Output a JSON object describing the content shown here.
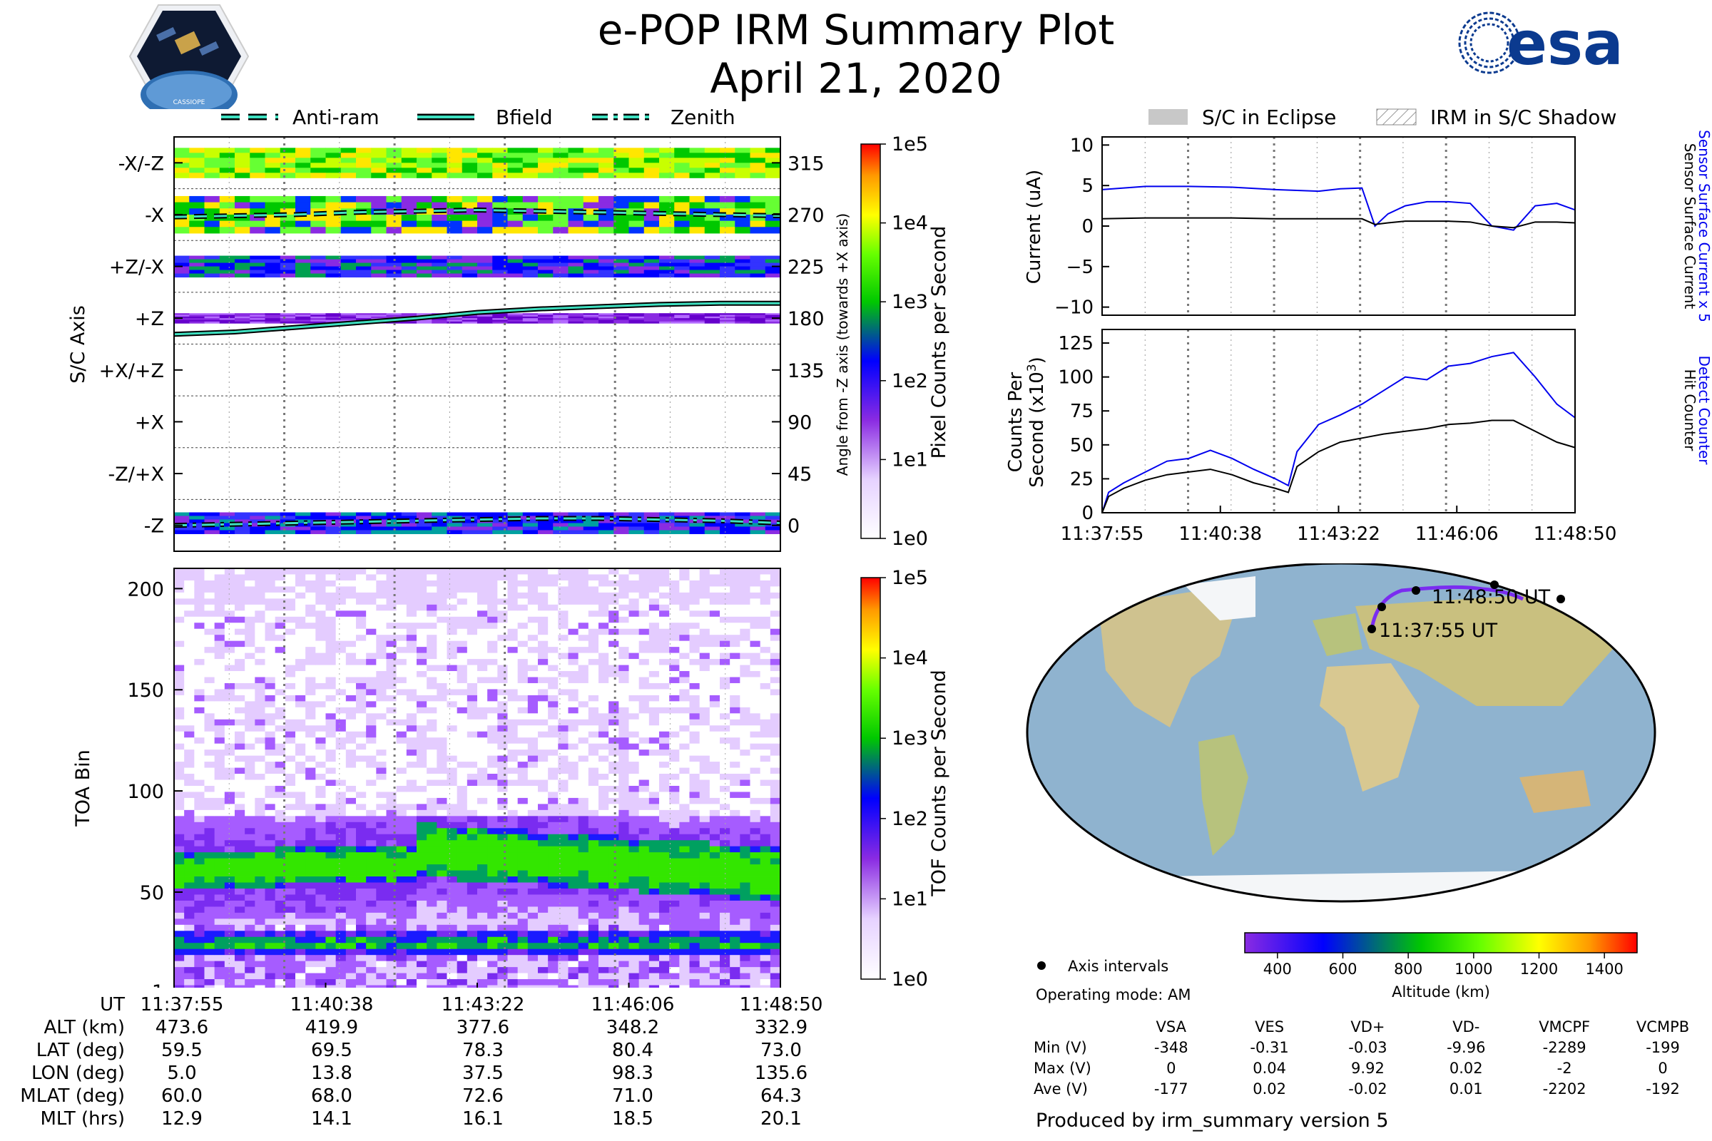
{
  "title": "e-POP IRM Summary Plot",
  "date": "April 21, 2020",
  "logos": {
    "left": "CASSIOPE",
    "right": "esa"
  },
  "colors": {
    "current_sensor": "#0000ee",
    "counts_detect": "#0000ee",
    "track": "#7a2cf0",
    "ocean": "#8fb3cf",
    "land": "#d2c896",
    "ice": "#f4f6f8"
  },
  "left_legend": [
    "Anti-ram",
    "Bfield",
    "Zenith"
  ],
  "right_legend": [
    "S/C in Eclipse",
    "IRM in S/C Shadow"
  ],
  "axis_labels": {
    "sc_axis": "S/C Axis",
    "angle": "Angle from -Z axis (towards +X axis)",
    "pixel_cbar": "Pixel Counts per Second",
    "toa": "TOA Bin",
    "tof_cbar": "TOF Counts per Second",
    "current": "Current (uA)",
    "counts1": "Counts Per",
    "counts2": "Second (x10",
    "counts_exp": "3",
    "sensor_current_x5": "Sensor Surface Current x 5",
    "sensor_current": "Sensor Surface Current",
    "detect_counter": "Detect Counter",
    "hit_counter": "Hit Counter",
    "altitude": "Altitude (km)"
  },
  "sc_axis_ticks": [
    "-X/-Z",
    "-X",
    "+Z/-X",
    "+Z",
    "+X/+Z",
    "+X",
    "-Z/+X",
    "-Z"
  ],
  "angle_ticks": [
    "315",
    "270",
    "225",
    "180",
    "135",
    "90",
    "45",
    "0"
  ],
  "cbar_ticks": [
    "1e5",
    "1e4",
    "1e3",
    "1e2",
    "1e1",
    "1e0"
  ],
  "toa_ticks": [
    "200",
    "150",
    "100",
    "50",
    "1"
  ],
  "time_ticks": [
    "11:37:55",
    "11:40:38",
    "11:43:22",
    "11:46:06",
    "11:48:50"
  ],
  "altitude_ticks": [
    "400",
    "600",
    "800",
    "1000",
    "1200",
    "1400"
  ],
  "ephemeris": {
    "labels": [
      "UT",
      "ALT (km)",
      "LAT (deg)",
      "LON (deg)",
      "MLAT (deg)",
      "MLT (hrs)"
    ],
    "columns": [
      [
        "11:37:55",
        "473.6",
        "59.5",
        "5.0",
        "60.0",
        "12.9"
      ],
      [
        "11:40:38",
        "419.9",
        "69.5",
        "13.8",
        "68.0",
        "14.1"
      ],
      [
        "11:43:22",
        "377.6",
        "78.3",
        "37.5",
        "72.6",
        "16.1"
      ],
      [
        "11:46:06",
        "348.2",
        "80.4",
        "98.3",
        "71.0",
        "18.5"
      ],
      [
        "11:48:50",
        "332.9",
        "73.0",
        "135.6",
        "64.3",
        "20.1"
      ]
    ]
  },
  "map": {
    "start_label": "11:37:55 UT",
    "end_label": "11:48:50 UT",
    "axis_intervals": "Axis intervals"
  },
  "operating_mode": "Operating mode: AM",
  "voltage_table": {
    "headers": [
      "VSA",
      "VES",
      "VD+",
      "VD-",
      "VMCPF",
      "VCMPB"
    ],
    "rows": [
      {
        "label": "Min (V)",
        "values": [
          "-348",
          "-0.31",
          "-0.03",
          "-9.96",
          "-2289",
          "-199"
        ]
      },
      {
        "label": "Max (V)",
        "values": [
          "0",
          "0.04",
          "9.92",
          "0.02",
          "-2",
          "0"
        ]
      },
      {
        "label": "Ave (V)",
        "values": [
          "-177",
          "0.02",
          "-0.02",
          "0.01",
          "-2202",
          "-192"
        ]
      }
    ]
  },
  "footer": "Produced by irm_summary version 5",
  "chart_data": [
    {
      "type": "heatmap",
      "name": "pixel_counts",
      "xlabel": "UT",
      "ylabel": "S/C Axis",
      "y2label": "Angle from -Z axis (towards +X axis)",
      "ylim": [
        -22.5,
        337.5
      ],
      "colorbar": "Pixel Counts per Second",
      "clim": [
        "1e0",
        "1e5"
      ],
      "series": [
        {
          "name": "Anti-ram",
          "x": [
            0,
            1,
            2,
            3,
            4,
            5,
            6,
            7,
            8,
            9,
            10
          ],
          "y": [
            268,
            269,
            270,
            272,
            273,
            274,
            273,
            272,
            271,
            270,
            269
          ]
        },
        {
          "name": "Bfield",
          "x": [
            0,
            1,
            2,
            3,
            4,
            5,
            6,
            7,
            8,
            9,
            10
          ],
          "y": [
            166,
            168,
            172,
            176,
            180,
            185,
            188,
            190,
            192,
            193,
            193
          ]
        },
        {
          "name": "Zenith",
          "x": [
            0,
            1,
            2,
            3,
            4,
            5,
            6,
            7,
            8,
            9,
            10
          ],
          "y": [
            0,
            1,
            2,
            3,
            4,
            5,
            6,
            6,
            5,
            4,
            2
          ]
        }
      ]
    },
    {
      "type": "heatmap",
      "name": "tof_counts",
      "xlabel": "UT",
      "ylabel": "TOA Bin",
      "ylim": [
        1,
        210
      ],
      "colorbar": "TOF Counts per Second",
      "clim": [
        "1e0",
        "1e5"
      ]
    },
    {
      "type": "line",
      "name": "current",
      "ylabel": "Current (uA)",
      "ylim": [
        -11,
        11
      ],
      "yticks": [
        "10",
        "5",
        "0",
        "−5",
        "−10"
      ],
      "x_minutes": [
        0,
        1,
        2,
        3,
        4,
        5,
        5.5,
        6,
        6.3,
        6.6,
        7,
        7.5,
        8,
        8.5,
        9,
        9.5,
        10,
        10.5,
        10.92
      ],
      "series": [
        {
          "name": "Sensor Surface Current x 5",
          "values": [
            4.5,
            4.9,
            4.9,
            4.8,
            4.5,
            4.3,
            4.6,
            4.7,
            0.0,
            1.5,
            2.5,
            3.0,
            3.0,
            2.8,
            0.0,
            -0.5,
            2.5,
            2.8,
            2.0
          ]
        },
        {
          "name": "Sensor Surface Current",
          "values": [
            0.9,
            1.0,
            1.0,
            1.0,
            0.9,
            0.9,
            0.9,
            0.9,
            0.2,
            0.4,
            0.6,
            0.6,
            0.6,
            0.5,
            0.0,
            -0.2,
            0.5,
            0.5,
            0.4
          ]
        }
      ]
    },
    {
      "type": "line",
      "name": "counts",
      "ylabel": "Counts Per Second (x10^3)",
      "ylim": [
        0,
        135
      ],
      "yticks": [
        "125",
        "100",
        "75",
        "50",
        "25",
        "0"
      ],
      "x_minutes": [
        0,
        0.15,
        0.5,
        1,
        1.5,
        2,
        2.5,
        3,
        3.5,
        4,
        4.3,
        4.5,
        5,
        5.5,
        6,
        6.5,
        7,
        7.5,
        8,
        8.5,
        9,
        9.5,
        10,
        10.5,
        10.92
      ],
      "series": [
        {
          "name": "Detect Counter",
          "values": [
            0,
            15,
            22,
            30,
            38,
            40,
            46,
            40,
            32,
            25,
            20,
            45,
            65,
            72,
            80,
            90,
            100,
            98,
            108,
            110,
            115,
            118,
            100,
            80,
            70
          ]
        },
        {
          "name": "Hit Counter",
          "values": [
            0,
            12,
            18,
            24,
            28,
            30,
            32,
            28,
            22,
            18,
            15,
            34,
            45,
            52,
            55,
            58,
            60,
            62,
            65,
            66,
            68,
            68,
            60,
            52,
            48
          ]
        }
      ]
    }
  ]
}
